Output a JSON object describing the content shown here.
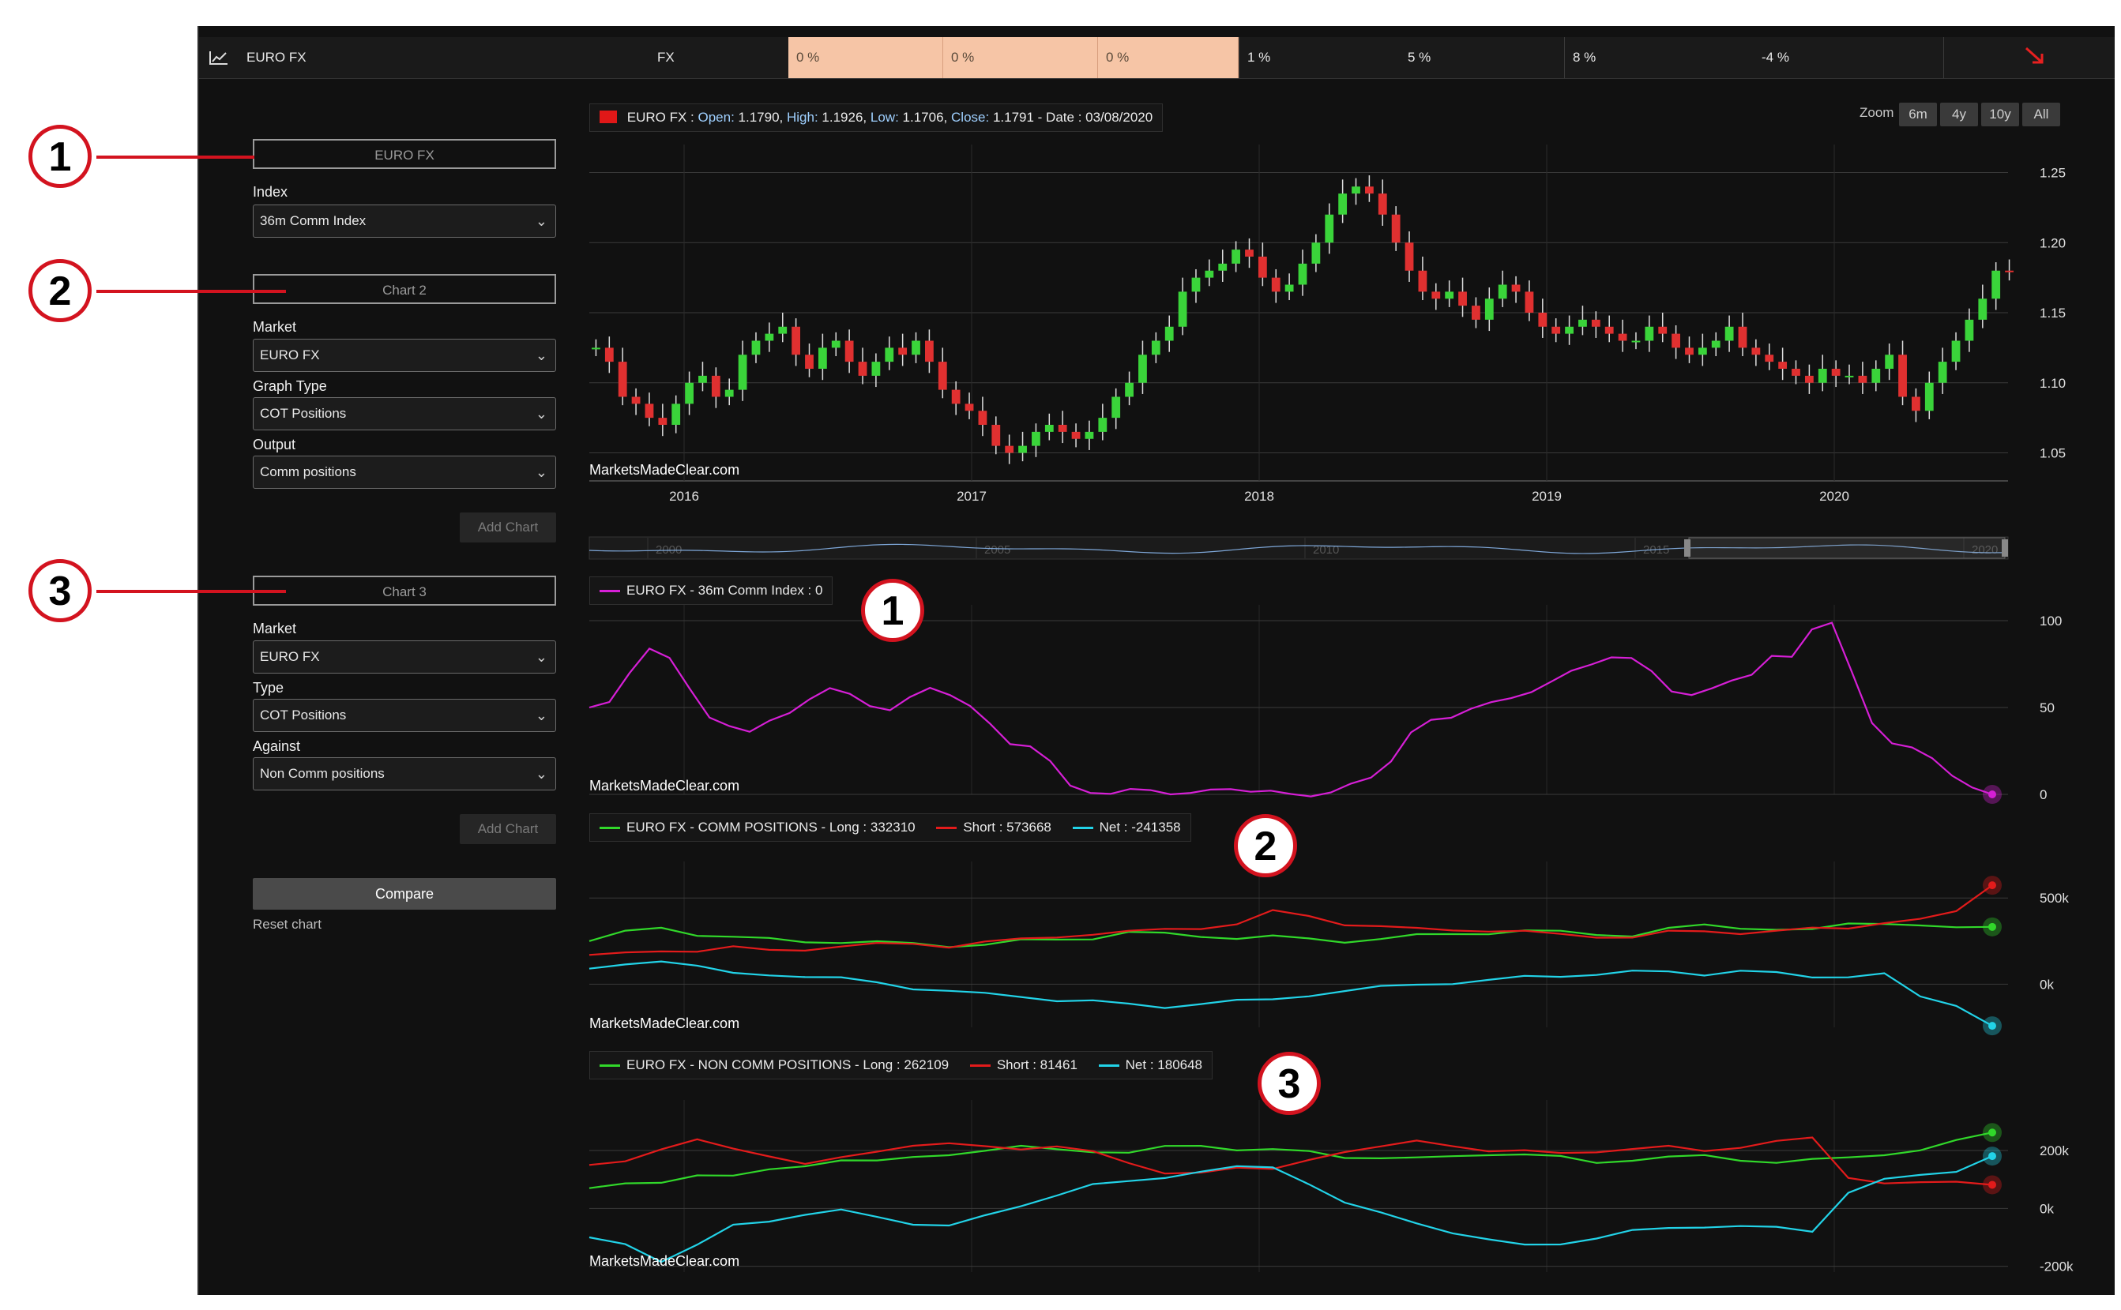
{
  "topbar": {
    "title": "EURO FX",
    "group": "FX",
    "cells": [
      "0 %",
      "0 %",
      "0 %",
      "1 %",
      "5 %",
      "8 %",
      "-4 %"
    ],
    "trend_icon": "arrow-down-right-icon"
  },
  "sidebar": {
    "block1": {
      "title": "EURO FX",
      "index_label": "Index",
      "index_value": "36m Comm Index"
    },
    "block2": {
      "title": "Chart 2",
      "market_label": "Market",
      "market_value": "EURO FX",
      "graph_label": "Graph Type",
      "graph_value": "COT Positions",
      "output_label": "Output",
      "output_value": "Comm positions",
      "add_label": "Add Chart"
    },
    "block3": {
      "title": "Chart 3",
      "market_label": "Market",
      "market_value": "EURO FX",
      "type_label": "Type",
      "type_value": "COT Positions",
      "against_label": "Against",
      "against_value": "Non Comm positions",
      "add_label": "Add Chart"
    },
    "compare_label": "Compare",
    "reset_label": "Reset chart"
  },
  "annotations": [
    "1",
    "2",
    "3"
  ],
  "zoom": {
    "label": "Zoom",
    "options": [
      "6m",
      "4y",
      "10y",
      "All"
    ]
  },
  "watermark": "MarketsMadeClear.com",
  "price_legend": {
    "name": "EURO FX :",
    "open_k": "Open:",
    "open_v": "1.1790,",
    "high_k": "High:",
    "high_v": "1.1926,",
    "low_k": "Low:",
    "low_v": "1.1706,",
    "close_k": "Close:",
    "close_v": "1.1791",
    "date": "- Date : 03/08/2020",
    "color": "#e01818"
  },
  "index_legend": {
    "text": "EURO FX - 36m Comm Index : 0",
    "color": "#d61fd6"
  },
  "comm_legend": {
    "long": "EURO FX - COMM POSITIONS - Long : 332310",
    "short": "Short : 573668",
    "net": "Net : -241358"
  },
  "noncomm_legend": {
    "long": "EURO FX - NON COMM POSITIONS - Long : 262109",
    "short": "Short : 81461",
    "net": "Net : 180648"
  },
  "colors": {
    "long": "#31d82a",
    "short": "#e31b1b",
    "net": "#22d3e8",
    "index": "#d61fd6",
    "up": "#3ad43a",
    "down": "#e03030"
  },
  "navigator": {
    "labels": [
      "2000",
      "2005",
      "2010",
      "2015",
      "2020"
    ]
  },
  "chart_data": [
    {
      "type": "candlestick",
      "title": "EURO FX",
      "x_ticks": [
        "2016",
        "2017",
        "2018",
        "2019",
        "2020"
      ],
      "y_ticks": [
        1.05,
        1.1,
        1.15,
        1.2,
        1.25
      ],
      "ylim": [
        1.03,
        1.27
      ],
      "close": [
        1.125,
        1.115,
        1.09,
        1.085,
        1.075,
        1.07,
        1.085,
        1.1,
        1.105,
        1.09,
        1.095,
        1.12,
        1.13,
        1.135,
        1.14,
        1.12,
        1.11,
        1.125,
        1.13,
        1.115,
        1.105,
        1.115,
        1.125,
        1.12,
        1.13,
        1.115,
        1.095,
        1.085,
        1.08,
        1.07,
        1.055,
        1.05,
        1.055,
        1.065,
        1.07,
        1.065,
        1.06,
        1.065,
        1.075,
        1.09,
        1.1,
        1.12,
        1.13,
        1.14,
        1.165,
        1.175,
        1.18,
        1.185,
        1.195,
        1.19,
        1.175,
        1.165,
        1.17,
        1.185,
        1.2,
        1.22,
        1.235,
        1.24,
        1.235,
        1.22,
        1.2,
        1.18,
        1.165,
        1.16,
        1.165,
        1.155,
        1.145,
        1.16,
        1.17,
        1.165,
        1.15,
        1.14,
        1.135,
        1.14,
        1.145,
        1.14,
        1.135,
        1.13,
        1.13,
        1.14,
        1.135,
        1.125,
        1.12,
        1.125,
        1.13,
        1.14,
        1.125,
        1.12,
        1.115,
        1.11,
        1.105,
        1.1,
        1.11,
        1.105,
        1.105,
        1.1,
        1.11,
        1.12,
        1.09,
        1.08,
        1.1,
        1.115,
        1.13,
        1.145,
        1.16,
        1.18,
        1.179
      ],
      "annotation": {
        "open": 1.179,
        "high": 1.1926,
        "low": 1.1706,
        "close": 1.1791,
        "date": "03/08/2020"
      }
    },
    {
      "type": "line",
      "title": "EURO FX - 36m Comm Index : 0",
      "y_ticks": [
        0,
        50,
        100
      ],
      "ylim": [
        0,
        100
      ],
      "series": [
        {
          "name": "EURO FX - 36m Comm Index",
          "values": [
            50,
            52,
            70,
            85,
            78,
            60,
            45,
            40,
            35,
            42,
            48,
            55,
            60,
            58,
            52,
            48,
            55,
            62,
            58,
            50,
            40,
            30,
            28,
            18,
            5,
            2,
            0,
            2,
            3,
            1,
            0,
            2,
            4,
            2,
            1,
            0,
            0,
            1,
            5,
            10,
            20,
            35,
            42,
            45,
            50,
            52,
            55,
            60,
            65,
            70,
            75,
            80,
            78,
            70,
            60,
            58,
            60,
            65,
            70,
            80,
            78,
            95,
            100,
            70,
            40,
            30,
            28,
            20,
            10,
            5,
            0
          ]
        }
      ]
    },
    {
      "type": "line",
      "title": "EURO FX - COMM POSITIONS",
      "y_ticks": [
        "500k",
        "0k"
      ],
      "ylim": [
        -250000,
        620000
      ],
      "series": [
        {
          "name": "Long",
          "values": [
            250000,
            300000,
            330000,
            290000,
            270000,
            260000,
            250000,
            245000,
            240000,
            235000,
            225000,
            230000,
            250000,
            260000,
            270000,
            300000,
            290000,
            280000,
            270000,
            275000,
            260000,
            250000,
            265000,
            280000,
            290000,
            300000,
            310000,
            300000,
            290000,
            285000,
            320000,
            340000,
            330000,
            320000,
            310000,
            350000,
            360000,
            340000,
            320000,
            332310
          ]
        },
        {
          "name": "Short",
          "values": [
            170000,
            180000,
            200000,
            190000,
            210000,
            200000,
            205000,
            215000,
            230000,
            240000,
            220000,
            240000,
            260000,
            280000,
            290000,
            300000,
            320000,
            330000,
            345000,
            420000,
            400000,
            350000,
            330000,
            320000,
            320000,
            310000,
            300000,
            290000,
            280000,
            270000,
            300000,
            310000,
            300000,
            305000,
            320000,
            330000,
            360000,
            370000,
            420000,
            573668
          ]
        },
        {
          "name": "Net",
          "values": [
            90000,
            120000,
            140000,
            100000,
            60000,
            60000,
            45000,
            30000,
            10000,
            -20000,
            -40000,
            -60000,
            -70000,
            -90000,
            -100000,
            -120000,
            -130000,
            -110000,
            -100000,
            -90000,
            -60000,
            -40000,
            -20000,
            0,
            10000,
            20000,
            40000,
            50000,
            60000,
            70000,
            70000,
            60000,
            80000,
            60000,
            40000,
            50000,
            60000,
            -80000,
            -120000,
            -241358
          ]
        }
      ]
    },
    {
      "type": "line",
      "title": "EURO FX - NON COMM POSITIONS",
      "y_ticks": [
        "200k",
        "0k",
        "-200k"
      ],
      "ylim": [
        -220000,
        320000
      ],
      "series": [
        {
          "name": "Long",
          "values": [
            70000,
            80000,
            90000,
            120000,
            110000,
            130000,
            150000,
            170000,
            160000,
            175000,
            190000,
            200000,
            210000,
            205000,
            200000,
            190000,
            210000,
            220000,
            205000,
            200000,
            195000,
            180000,
            175000,
            170000,
            180000,
            190000,
            185000,
            175000,
            160000,
            170000,
            175000,
            180000,
            170000,
            160000,
            165000,
            175000,
            190000,
            200000,
            230000,
            262109
          ]
        },
        {
          "name": "Short",
          "values": [
            150000,
            160000,
            210000,
            240000,
            200000,
            180000,
            160000,
            175000,
            190000,
            220000,
            230000,
            210000,
            200000,
            220000,
            200000,
            150000,
            120000,
            130000,
            140000,
            130000,
            170000,
            200000,
            210000,
            230000,
            220000,
            200000,
            195000,
            190000,
            200000,
            205000,
            210000,
            200000,
            215000,
            230000,
            240000,
            110000,
            90000,
            85000,
            90000,
            81461
          ]
        },
        {
          "name": "Net",
          "values": [
            -100000,
            -120000,
            -180000,
            -130000,
            -60000,
            -40000,
            -20000,
            -10000,
            -30000,
            -50000,
            -60000,
            -30000,
            10000,
            50000,
            80000,
            90000,
            110000,
            130000,
            140000,
            140000,
            90000,
            20000,
            -20000,
            -50000,
            -80000,
            -110000,
            -130000,
            -120000,
            -100000,
            -80000,
            -70000,
            -60000,
            -60000,
            -70000,
            -80000,
            60000,
            100000,
            110000,
            130000,
            180648
          ]
        }
      ]
    }
  ]
}
